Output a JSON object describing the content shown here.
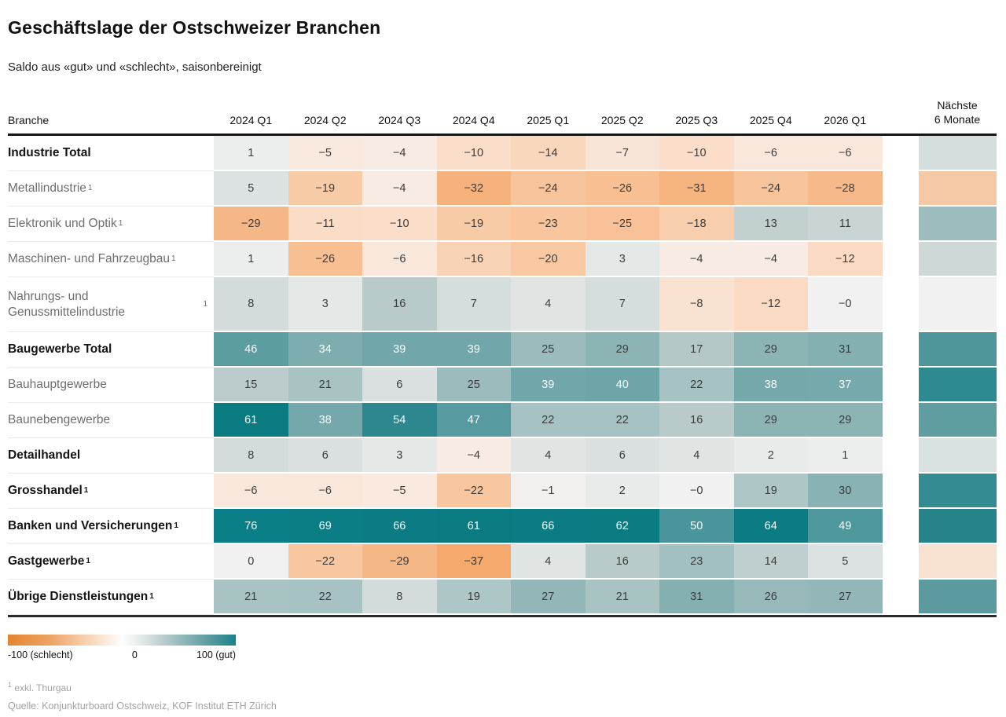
{
  "chart_data": {
    "type": "heatmap",
    "title": "Geschäftslage der Ostschweizer Branchen",
    "subtitle": "Saldo aus «gut» und «schlecht», saisonbereinigt",
    "row_header": "Branche",
    "columns": [
      "2024 Q1",
      "2024 Q2",
      "2024 Q3",
      "2024 Q4",
      "2025 Q1",
      "2025 Q2",
      "2025 Q3",
      "2025 Q4",
      "2026 Q1"
    ],
    "outlook_column": "Nächste\n6 Monate",
    "rows": [
      {
        "label": "Industrie Total",
        "emphasis": true,
        "footnote_marker": false,
        "values": [
          1,
          -5,
          -4,
          -10,
          -14,
          -7,
          -10,
          -6,
          -6
        ],
        "display": [
          "1",
          "−5",
          "−4",
          "−10",
          "−14",
          "−7",
          "−10",
          "−6",
          "−6"
        ],
        "outlook_color": "#d5dedd"
      },
      {
        "label": "Metallindustrie",
        "emphasis": false,
        "footnote_marker": true,
        "values": [
          5,
          -19,
          -4,
          -32,
          -24,
          -26,
          -31,
          -24,
          -28
        ],
        "display": [
          "5",
          "−19",
          "−4",
          "−32",
          "−24",
          "−26",
          "−31",
          "−24",
          "−28"
        ],
        "outlook_color": "#f6c9a6"
      },
      {
        "label": "Elektronik und Optik",
        "emphasis": false,
        "footnote_marker": true,
        "values": [
          -29,
          -11,
          -10,
          -19,
          -23,
          -25,
          -18,
          13,
          11
        ],
        "display": [
          "−29",
          "−11",
          "−10",
          "−19",
          "−23",
          "−25",
          "−18",
          "13",
          "11"
        ],
        "outlook_color": "#9dbcbd"
      },
      {
        "label": "Maschinen- und Fahrzeugbau",
        "emphasis": false,
        "footnote_marker": true,
        "values": [
          1,
          -26,
          -6,
          -16,
          -20,
          3,
          -4,
          -4,
          -12
        ],
        "display": [
          "1",
          "−26",
          "−6",
          "−16",
          "−20",
          "3",
          "−4",
          "−4",
          "−12"
        ],
        "outlook_color": "#cdd8d7"
      },
      {
        "label": "Nahrungs- und Genussmittelindustrie",
        "emphasis": false,
        "footnote_marker": true,
        "tall": true,
        "values": [
          8,
          3,
          16,
          7,
          4,
          7,
          -8,
          -12,
          0
        ],
        "display": [
          "8",
          "3",
          "16",
          "7",
          "4",
          "7",
          "−8",
          "−12",
          "−0"
        ],
        "outlook_color": "#f0f1f0"
      },
      {
        "label": "Baugewerbe Total",
        "emphasis": true,
        "footnote_marker": false,
        "values": [
          46,
          34,
          39,
          39,
          25,
          29,
          17,
          29,
          31
        ],
        "display": [
          "46",
          "34",
          "39",
          "39",
          "25",
          "29",
          "17",
          "29",
          "31"
        ],
        "outlook_color": "#4f969b"
      },
      {
        "label": "Bauhauptgewerbe",
        "emphasis": false,
        "footnote_marker": false,
        "values": [
          15,
          21,
          6,
          25,
          39,
          40,
          22,
          38,
          37
        ],
        "display": [
          "15",
          "21",
          "6",
          "25",
          "39",
          "40",
          "22",
          "38",
          "37"
        ],
        "outlook_color": "#2d8a90"
      },
      {
        "label": "Baunebengewerbe",
        "emphasis": false,
        "footnote_marker": false,
        "values": [
          61,
          38,
          54,
          47,
          22,
          22,
          16,
          29,
          29
        ],
        "display": [
          "61",
          "38",
          "54",
          "47",
          "22",
          "22",
          "16",
          "29",
          "29"
        ],
        "outlook_color": "#5f9da1"
      },
      {
        "label": "Detailhandel",
        "emphasis": true,
        "footnote_marker": false,
        "values": [
          8,
          6,
          3,
          -4,
          4,
          6,
          4,
          2,
          1
        ],
        "display": [
          "8",
          "6",
          "3",
          "−4",
          "4",
          "6",
          "4",
          "2",
          "1"
        ],
        "outlook_color": "#dae2e1"
      },
      {
        "label": "Grosshandel",
        "emphasis": true,
        "footnote_marker": true,
        "values": [
          -6,
          -6,
          -5,
          -22,
          -1,
          2,
          0,
          19,
          30
        ],
        "display": [
          "−6",
          "−6",
          "−5",
          "−22",
          "−1",
          "2",
          "−0",
          "19",
          "30"
        ],
        "outlook_color": "#348b91"
      },
      {
        "label": "Banken und Versicherungen",
        "emphasis": true,
        "footnote_marker": true,
        "values": [
          76,
          69,
          66,
          61,
          66,
          62,
          50,
          64,
          49
        ],
        "display": [
          "76",
          "69",
          "66",
          "61",
          "66",
          "62",
          "50",
          "64",
          "49"
        ],
        "outlook_color": "#268389"
      },
      {
        "label": "Gastgewerbe",
        "emphasis": true,
        "footnote_marker": true,
        "values": [
          0,
          -22,
          -29,
          -37,
          4,
          16,
          23,
          14,
          5
        ],
        "display": [
          "0",
          "−22",
          "−29",
          "−37",
          "4",
          "16",
          "23",
          "14",
          "5"
        ],
        "outlook_color": "#f8e3d3"
      },
      {
        "label": "Übrige Dienstleistungen",
        "emphasis": true,
        "footnote_marker": true,
        "values": [
          21,
          22,
          8,
          19,
          27,
          21,
          31,
          26,
          27
        ],
        "display": [
          "21",
          "22",
          "8",
          "19",
          "27",
          "21",
          "31",
          "26",
          "27"
        ],
        "outlook_color": "#5b9ba0"
      }
    ],
    "scale": {
      "min": -100,
      "mid": 0,
      "max": 100,
      "min_label": "-100 (schlecht)",
      "mid_label": "0",
      "max_label": "100 (gut)",
      "white_text_threshold": 33,
      "stops": [
        [
          -40,
          "#f5a561"
        ],
        [
          -37,
          "#f5a96c"
        ],
        [
          -32,
          "#f6b27c"
        ],
        [
          -28,
          "#f6b989"
        ],
        [
          -24,
          "#f8c49b"
        ],
        [
          -20,
          "#f8c8a2"
        ],
        [
          -16,
          "#f9d3b6"
        ],
        [
          -10,
          "#fadeca"
        ],
        [
          -5,
          "#f9e9df"
        ],
        [
          -2,
          "#f3efec"
        ],
        [
          0,
          "#f0f1f0"
        ],
        [
          2,
          "#e8ebea"
        ],
        [
          5,
          "#dce2e1"
        ],
        [
          8,
          "#d3dcdb"
        ],
        [
          13,
          "#c3d0d0"
        ],
        [
          17,
          "#b4c8c8"
        ],
        [
          22,
          "#a6c2c2"
        ],
        [
          27,
          "#93b7b8"
        ],
        [
          31,
          "#84b0b2"
        ],
        [
          38,
          "#74a8ab"
        ],
        [
          46,
          "#5b9da1"
        ],
        [
          50,
          "#4a959b"
        ],
        [
          54,
          "#2c878e"
        ],
        [
          61,
          "#0b7b82"
        ],
        [
          76,
          "#0a7f87"
        ],
        [
          100,
          "#00787f"
        ]
      ]
    }
  },
  "footnote": {
    "marker": "1",
    "text": " exkl. Thurgau"
  },
  "source": "Quelle: Konjunkturboard Ostschweiz, KOF Institut ETH Zürich"
}
